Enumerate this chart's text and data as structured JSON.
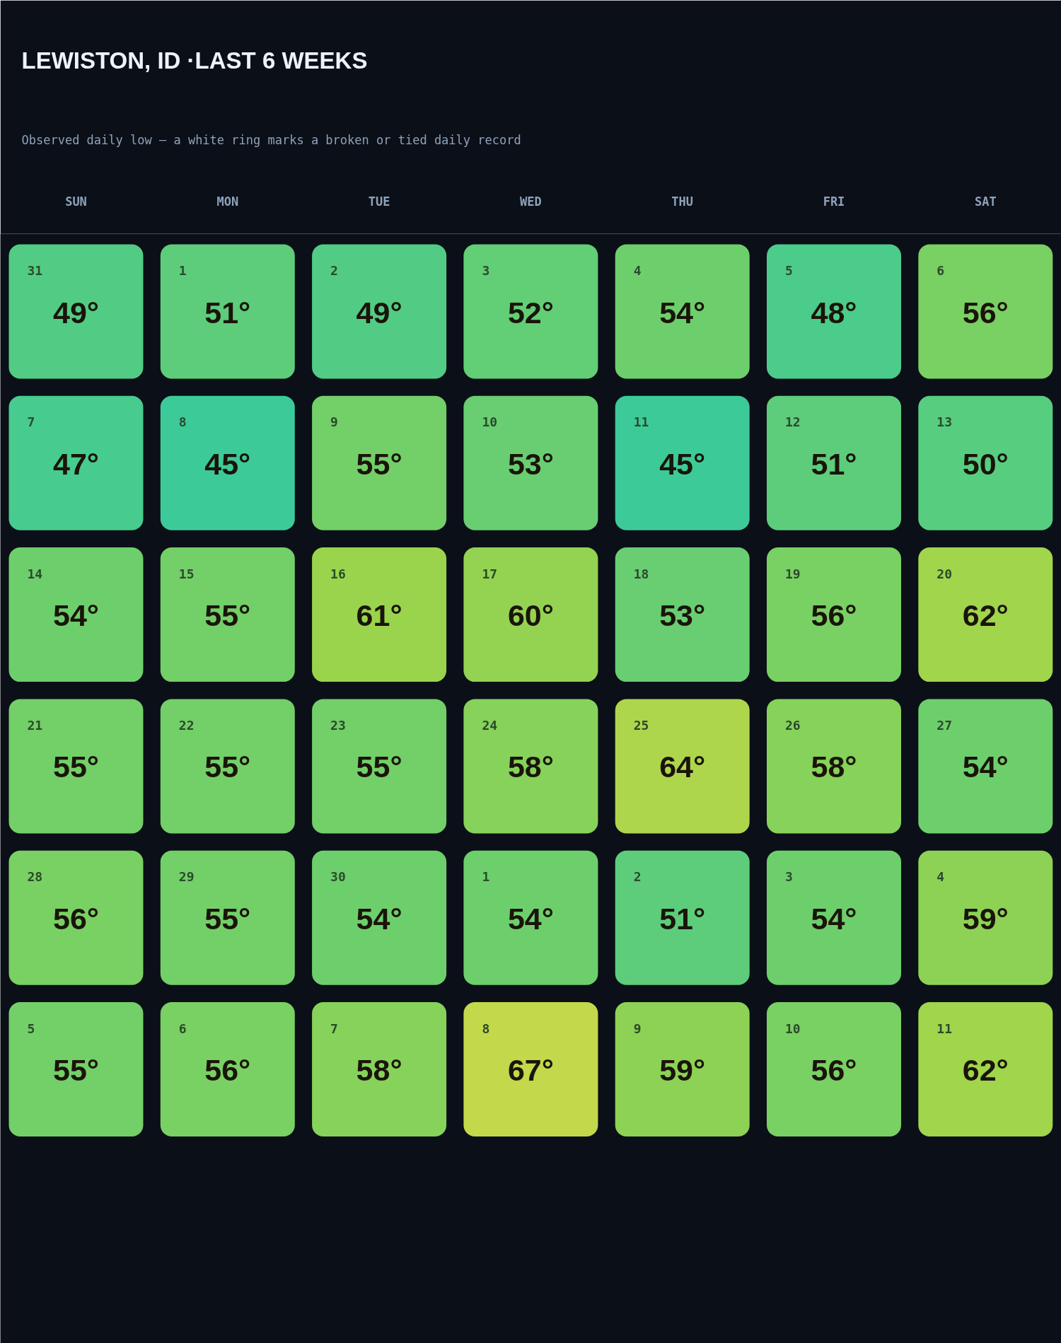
{
  "chart_data": {
    "type": "heatmap",
    "title": "LEWISTON, ID ·LAST 6 WEEKS",
    "subtitle": "Observed daily low — a white ring marks a broken or tied daily record",
    "categories": [
      "SUN",
      "MON",
      "TUE",
      "WED",
      "THU",
      "FRI",
      "SAT"
    ],
    "y_categories": [
      null,
      null,
      null,
      null,
      null,
      null
    ],
    "cells": [
      [
        49,
        51,
        49,
        52,
        54,
        48,
        56
      ],
      [
        47,
        45,
        55,
        53,
        45,
        51,
        50
      ],
      [
        54,
        55,
        61,
        60,
        53,
        56,
        62
      ],
      [
        55,
        55,
        55,
        58,
        64,
        58,
        54
      ],
      [
        56,
        55,
        54,
        54,
        51,
        54,
        59
      ],
      [
        55,
        56,
        58,
        67,
        59,
        56,
        62
      ]
    ],
    "cell_labels": [
      [
        "49°",
        "51°",
        "49°",
        "52°",
        "54°",
        "48°",
        "56°"
      ],
      [
        "47°",
        "45°",
        "55°",
        "53°",
        "45°",
        "51°",
        "50°"
      ],
      [
        "54°",
        "55°",
        "61°",
        "60°",
        "53°",
        "56°",
        "62°"
      ],
      [
        "55°",
        "55°",
        "55°",
        "58°",
        "64°",
        "58°",
        "54°"
      ],
      [
        "56°",
        "55°",
        "54°",
        "54°",
        "51°",
        "54°",
        "59°"
      ],
      [
        "55°",
        "56°",
        "58°",
        "67°",
        "59°",
        "56°",
        "62°"
      ]
    ],
    "annotations": [
      "31",
      "1",
      "2",
      "3",
      "4",
      "5",
      "6",
      "7",
      "8",
      "9",
      "10",
      "11",
      "12",
      "13",
      "14",
      "15",
      "16",
      "17",
      "18",
      "19",
      "20",
      "21",
      "22",
      "23",
      "24",
      "25",
      "26",
      "27",
      "28",
      "29",
      "30",
      "1",
      "2",
      "3",
      "4",
      "5",
      "6",
      "7",
      "8",
      "9",
      "10",
      "11"
    ]
  }
}
